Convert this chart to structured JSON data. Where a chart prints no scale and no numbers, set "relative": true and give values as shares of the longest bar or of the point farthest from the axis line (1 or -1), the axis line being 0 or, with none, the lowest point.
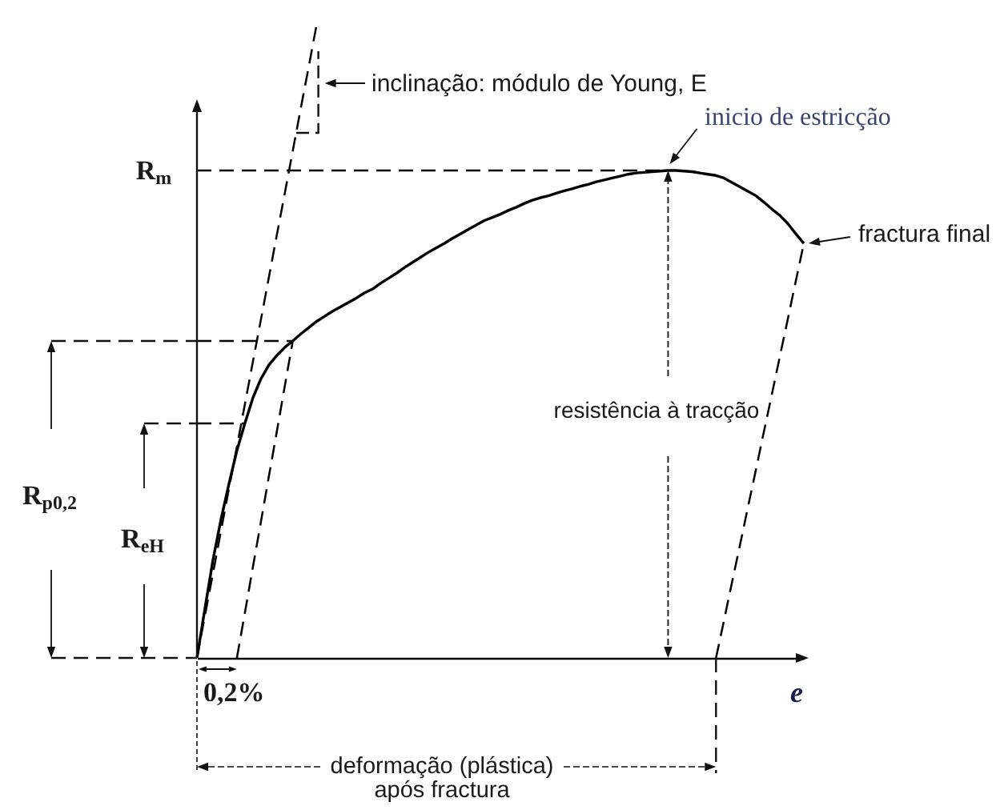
{
  "chart_data": {
    "type": "line",
    "relative": true,
    "xlabel": "e",
    "categories": [
      null,
      null,
      null,
      null,
      null,
      null,
      null,
      null,
      null,
      null,
      null,
      null,
      null,
      null,
      null,
      null,
      null,
      null,
      null,
      null,
      null,
      null,
      null,
      null,
      null,
      null,
      null,
      null,
      null,
      null,
      null,
      null,
      null,
      null,
      null,
      null,
      null,
      null,
      null,
      null,
      null,
      null,
      null,
      null,
      null,
      null,
      null,
      null,
      null,
      null,
      null,
      null,
      null,
      null,
      null,
      null,
      null,
      null,
      null,
      null,
      null,
      null,
      null,
      null,
      null,
      null,
      null,
      null,
      null,
      null,
      null,
      null,
      null,
      null,
      null,
      null,
      null
    ],
    "series": [
      {
        "color": "#000000",
        "values": [
          0,
          0.078,
          0.154,
          0.218,
          0.274,
          0.327,
          0.37,
          0.41,
          0.44,
          0.462,
          0.477,
          0.49,
          0.5,
          0.511,
          0.521,
          0.531,
          0.539,
          0.547,
          0.554,
          0.561,
          0.568,
          0.576,
          0.582,
          0.591,
          0.599,
          0.607,
          0.616,
          0.624,
          0.632,
          0.64,
          0.647,
          0.654,
          0.662,
          0.669,
          0.676,
          0.683,
          0.69,
          0.695,
          0.7,
          0.706,
          0.711,
          0.717,
          0.722,
          0.726,
          0.729,
          0.733,
          0.737,
          0.74,
          0.744,
          0.747,
          0.751,
          0.754,
          0.757,
          0.76,
          0.763,
          0.765,
          0.766,
          0.767,
          0.768,
          0.769,
          0.769,
          0.768,
          0.767,
          0.765,
          0.763,
          0.761,
          0.757,
          0.75,
          0.743,
          0.736,
          0.729,
          0.719,
          0.708,
          0.698,
          0.685,
          0.669,
          0.654
        ]
      },
      {
        "color": "#000000",
        "line_style": "dashed",
        "values": [
          0,
          0.067,
          0.133,
          0.2,
          0.267,
          0.333,
          0.4,
          0.467,
          0.533,
          0.6,
          0.667,
          0.733,
          0.8,
          0.867,
          0.933,
          1,
          null,
          null,
          null,
          null,
          null,
          null,
          null,
          null,
          null,
          null,
          null,
          null,
          null,
          null,
          null,
          null,
          null,
          null,
          null,
          null,
          null,
          null,
          null,
          null,
          null,
          null,
          null,
          null,
          null,
          null,
          null,
          null,
          null,
          null,
          null,
          null,
          null,
          null,
          null,
          null,
          null,
          null,
          null,
          null,
          null,
          null,
          null,
          null,
          null,
          null,
          null,
          null,
          null,
          null,
          null,
          null,
          null,
          null,
          null,
          null,
          null
        ]
      },
      {
        "color": "#000000",
        "line_style": "dashed",
        "values": [
          null,
          null,
          null,
          null,
          null,
          0,
          0.071,
          0.143,
          0.214,
          0.286,
          0.357,
          0.429,
          0.5,
          null,
          null,
          null,
          null,
          null,
          null,
          null,
          null,
          null,
          null,
          null,
          null,
          null,
          null,
          null,
          null,
          null,
          null,
          null,
          null,
          null,
          null,
          null,
          null,
          null,
          null,
          null,
          null,
          null,
          null,
          null,
          null,
          null,
          null,
          null,
          null,
          null,
          null,
          null,
          null,
          null,
          null,
          null,
          null,
          null,
          null,
          null,
          null,
          null,
          null,
          null,
          null,
          null,
          null,
          null,
          null,
          null,
          null,
          null,
          null,
          null,
          null,
          null,
          null
        ]
      },
      {
        "color": "#000000",
        "line_style": "dashed",
        "values": [
          null,
          null,
          null,
          null,
          null,
          null,
          null,
          null,
          null,
          null,
          null,
          null,
          null,
          null,
          null,
          null,
          null,
          null,
          null,
          null,
          null,
          null,
          null,
          null,
          null,
          null,
          null,
          null,
          null,
          null,
          null,
          null,
          null,
          null,
          null,
          null,
          null,
          null,
          null,
          null,
          null,
          null,
          null,
          null,
          null,
          null,
          null,
          null,
          null,
          null,
          null,
          null,
          null,
          null,
          null,
          null,
          null,
          null,
          null,
          null,
          null,
          null,
          null,
          null,
          null,
          0,
          0.059,
          0.119,
          0.178,
          0.238,
          0.297,
          0.357,
          0.416,
          0.476,
          0.535,
          0.595,
          0.654
        ]
      },
      {
        "color": "#000000",
        "line_style": "dashed",
        "values": [
          0.769,
          0.769,
          0.769,
          0.769,
          0.769,
          0.769,
          0.769,
          0.769,
          0.769,
          0.769,
          0.769,
          0.769,
          0.769,
          0.769,
          0.769,
          0.769,
          0.769,
          0.769,
          0.769,
          0.769,
          0.769,
          0.769,
          0.769,
          0.769,
          0.769,
          0.769,
          0.769,
          0.769,
          0.769,
          0.769,
          0.769,
          0.769,
          0.769,
          0.769,
          0.769,
          0.769,
          0.769,
          0.769,
          0.769,
          0.769,
          0.769,
          0.769,
          0.769,
          0.769,
          0.769,
          0.769,
          0.769,
          0.769,
          0.769,
          0.769,
          0.769,
          0.769,
          0.769,
          0.769,
          0.769,
          0.769,
          0.769,
          0.769,
          0.769,
          0.769,
          null,
          null,
          null,
          null,
          null,
          null,
          null,
          null,
          null,
          null,
          null,
          null,
          null,
          null,
          null,
          null,
          null
        ]
      },
      {
        "color": "#000000",
        "line_style": "dashed",
        "values": [
          0.5,
          0.5,
          0.5,
          0.5,
          0.5,
          0.5,
          0.5,
          0.5,
          0.5,
          0.5,
          0.5,
          0.5,
          0.5,
          null,
          null,
          null,
          null,
          null,
          null,
          null,
          null,
          null,
          null,
          null,
          null,
          null,
          null,
          null,
          null,
          null,
          null,
          null,
          null,
          null,
          null,
          null,
          null,
          null,
          null,
          null,
          null,
          null,
          null,
          null,
          null,
          null,
          null,
          null,
          null,
          null,
          null,
          null,
          null,
          null,
          null,
          null,
          null,
          null,
          null,
          null,
          null,
          null,
          null,
          null,
          null,
          null,
          null,
          null,
          null,
          null,
          null,
          null,
          null,
          null,
          null,
          null,
          null
        ]
      },
      {
        "color": "#000000",
        "line_style": "dashed",
        "values": [
          0.37,
          0.37,
          0.37,
          0.37,
          0.37,
          0.37,
          0.37,
          null,
          null,
          null,
          null,
          null,
          null,
          null,
          null,
          null,
          null,
          null,
          null,
          null,
          null,
          null,
          null,
          null,
          null,
          null,
          null,
          null,
          null,
          null,
          null,
          null,
          null,
          null,
          null,
          null,
          null,
          null,
          null,
          null,
          null,
          null,
          null,
          null,
          null,
          null,
          null,
          null,
          null,
          null,
          null,
          null,
          null,
          null,
          null,
          null,
          null,
          null,
          null,
          null,
          null,
          null,
          null,
          null,
          null,
          null,
          null,
          null,
          null,
          null,
          null,
          null,
          null,
          null,
          null,
          null,
          null
        ]
      }
    ],
    "annotations": [
      "inclinação: módulo de Young, E",
      "inicio de estricção",
      "R$_{m}$",
      "fractura final",
      "resistência à tracção",
      "R$_{p0,2}$",
      "R$_{eH}$",
      "0,2%",
      "deformação (plástica)\napós fractura"
    ]
  }
}
